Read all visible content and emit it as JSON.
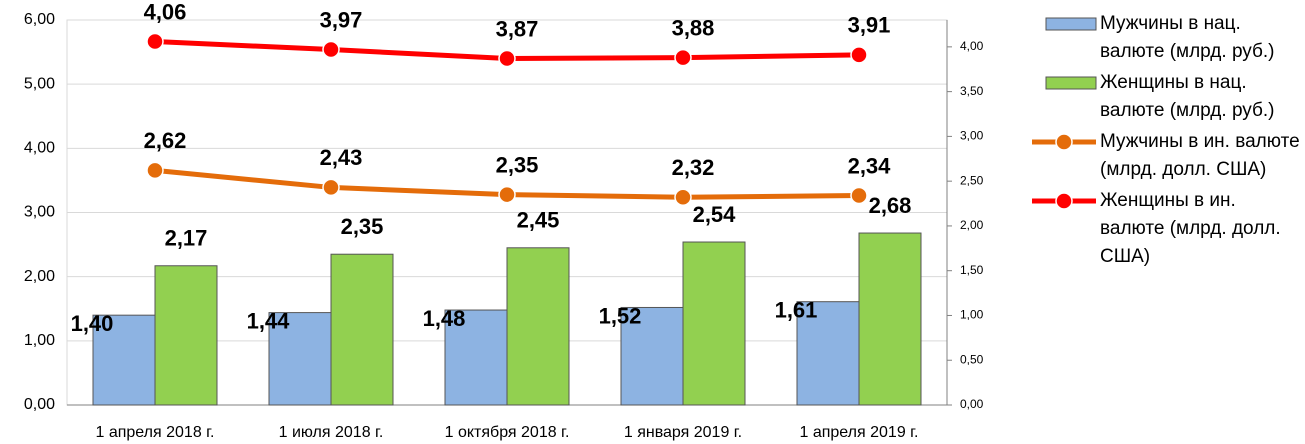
{
  "chart_data": {
    "type": "bar",
    "categories": [
      "1 апреля 2018 г.",
      "1 июля 2018 г.",
      "1 октября 2018 г.",
      "1 января 2019 г.",
      "1 апреля 2019 г."
    ],
    "series": [
      {
        "name": "Мужчины в нац. валюте (млрд. руб.)",
        "type": "bar",
        "color": "#8db3e2",
        "values": [
          1.4,
          1.44,
          1.48,
          1.52,
          1.61
        ],
        "value_labels": [
          "1,40",
          "1,44",
          "1,48",
          "1,52",
          "1,61"
        ],
        "label_color": "#376092"
      },
      {
        "name": "Женщины в нац. валюте (млрд. руб.)",
        "type": "bar",
        "color": "#92d050",
        "values": [
          2.17,
          2.35,
          2.45,
          2.54,
          2.68
        ],
        "value_labels": [
          "2,17",
          "2,35",
          "2,45",
          "2,54",
          "2,68"
        ],
        "label_color": "#77933c"
      },
      {
        "name": "Мужчины в ин. валюте (млрд. долл. США)",
        "type": "line",
        "axis": "y2",
        "color": "#e46c0a",
        "values": [
          2.62,
          2.43,
          2.35,
          2.32,
          2.34
        ],
        "value_labels": [
          "2,62",
          "2,43",
          "2,35",
          "2,32",
          "2,34"
        ],
        "label_color": "#e46c0a"
      },
      {
        "name": "Женщины в ин. валюте (млрд. долл. США)",
        "type": "line",
        "axis": "y2",
        "color": "#ff0000",
        "values": [
          4.06,
          3.97,
          3.87,
          3.88,
          3.91
        ],
        "value_labels": [
          "4,06",
          "3,97",
          "3,87",
          "3,88",
          "3,91"
        ],
        "label_color": "#ff0000"
      }
    ],
    "ylim": [
      0,
      6
    ],
    "yticks": [
      {
        "value": 0,
        "label": "0,00"
      },
      {
        "value": 1,
        "label": "1,00"
      },
      {
        "value": 2,
        "label": "2,00"
      },
      {
        "value": 3,
        "label": "3,00"
      },
      {
        "value": 4,
        "label": "4,00"
      },
      {
        "value": 5,
        "label": "5,00"
      },
      {
        "value": 6,
        "label": "6,00"
      }
    ],
    "y2lim": [
      0,
      4.3
    ],
    "y2ticks": [
      {
        "value": 0,
        "label": "0,00"
      },
      {
        "value": 0.5,
        "label": "0,50"
      },
      {
        "value": 1,
        "label": "1,00"
      },
      {
        "value": 1.5,
        "label": "1,50"
      },
      {
        "value": 2,
        "label": "2,00"
      },
      {
        "value": 2.5,
        "label": "2,50"
      },
      {
        "value": 3,
        "label": "3,00"
      },
      {
        "value": 3.5,
        "label": "3,50"
      },
      {
        "value": 4,
        "label": "4,00"
      }
    ],
    "grid": true,
    "legend": "right"
  }
}
